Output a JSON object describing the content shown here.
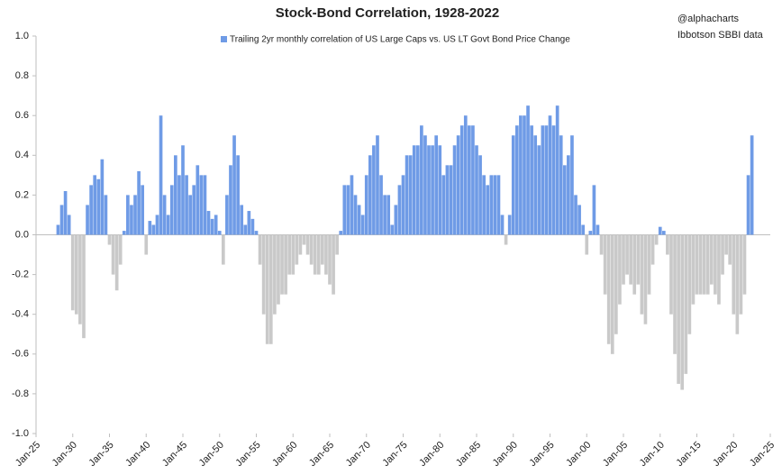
{
  "chart_data": {
    "type": "bar",
    "title": "Stock-Bond Correlation, 1928-2022",
    "annotations": [
      "@alphacharts",
      "Ibbotson SBBI data"
    ],
    "xlim": [
      1925,
      2025
    ],
    "xticks": [
      {
        "value": 1925,
        "label": "Jan-25"
      },
      {
        "value": 1930,
        "label": "Jan-30"
      },
      {
        "value": 1935,
        "label": "Jan-35"
      },
      {
        "value": 1940,
        "label": "Jan-40"
      },
      {
        "value": 1945,
        "label": "Jan-45"
      },
      {
        "value": 1950,
        "label": "Jan-50"
      },
      {
        "value": 1955,
        "label": "Jan-55"
      },
      {
        "value": 1960,
        "label": "Jan-60"
      },
      {
        "value": 1965,
        "label": "Jan-65"
      },
      {
        "value": 1970,
        "label": "Jan-70"
      },
      {
        "value": 1975,
        "label": "Jan-75"
      },
      {
        "value": 1980,
        "label": "Jan-80"
      },
      {
        "value": 1985,
        "label": "Jan-85"
      },
      {
        "value": 1990,
        "label": "Jan-90"
      },
      {
        "value": 1995,
        "label": "Jan-95"
      },
      {
        "value": 2000,
        "label": "Jan-00"
      },
      {
        "value": 2005,
        "label": "Jan-05"
      },
      {
        "value": 2010,
        "label": "Jan-10"
      },
      {
        "value": 2015,
        "label": "Jan-15"
      },
      {
        "value": 2020,
        "label": "Jan-20"
      },
      {
        "value": 2025,
        "label": "Jan-25"
      }
    ],
    "ylim": [
      -1,
      1
    ],
    "yticks": [
      {
        "value": 1,
        "label": "1.0"
      },
      0.8,
      0.6,
      0.4,
      0.2,
      {
        "value": 0,
        "label": "0.0"
      },
      -0.2,
      -0.4,
      -0.6,
      -0.8,
      {
        "value": -1,
        "label": "-1.0"
      }
    ],
    "x": [
      1928,
      1928.5,
      1929,
      1929.5,
      1930,
      1930.5,
      1931,
      1931.5,
      1932,
      1932.5,
      1933,
      1933.5,
      1934,
      1934.5,
      1935,
      1935.5,
      1936,
      1936.5,
      1937,
      1937.5,
      1938,
      1938.5,
      1939,
      1939.5,
      1940,
      1940.5,
      1941,
      1941.5,
      1942,
      1942.5,
      1943,
      1943.5,
      1944,
      1944.5,
      1945,
      1945.5,
      1946,
      1946.5,
      1947,
      1947.5,
      1948,
      1948.5,
      1949,
      1949.5,
      1950,
      1950.5,
      1951,
      1951.5,
      1952,
      1952.5,
      1953,
      1953.5,
      1954,
      1954.5,
      1955,
      1955.5,
      1956,
      1956.5,
      1957,
      1957.5,
      1958,
      1958.5,
      1959,
      1959.5,
      1960,
      1960.5,
      1961,
      1961.5,
      1962,
      1962.5,
      1963,
      1963.5,
      1964,
      1964.5,
      1965,
      1965.5,
      1966,
      1966.5,
      1967,
      1967.5,
      1968,
      1968.5,
      1969,
      1969.5,
      1970,
      1970.5,
      1971,
      1971.5,
      1972,
      1972.5,
      1973,
      1973.5,
      1974,
      1974.5,
      1975,
      1975.5,
      1976,
      1976.5,
      1977,
      1977.5,
      1978,
      1978.5,
      1979,
      1979.5,
      1980,
      1980.5,
      1981,
      1981.5,
      1982,
      1982.5,
      1983,
      1983.5,
      1984,
      1984.5,
      1985,
      1985.5,
      1986,
      1986.5,
      1987,
      1987.5,
      1988,
      1988.5,
      1989,
      1989.5,
      1990,
      1990.5,
      1991,
      1991.5,
      1992,
      1992.5,
      1993,
      1993.5,
      1994,
      1994.5,
      1995,
      1995.5,
      1996,
      1996.5,
      1997,
      1997.5,
      1998,
      1998.5,
      1999,
      1999.5,
      2000,
      2000.5,
      2001,
      2001.5,
      2002,
      2002.5,
      2003,
      2003.5,
      2004,
      2004.5,
      2005,
      2005.5,
      2006,
      2006.5,
      2007,
      2007.5,
      2008,
      2008.5,
      2009,
      2009.5,
      2010,
      2010.5,
      2011,
      2011.5,
      2012,
      2012.5,
      2013,
      2013.5,
      2014,
      2014.5,
      2015,
      2015.5,
      2016,
      2016.5,
      2017,
      2017.5,
      2018,
      2018.5,
      2019,
      2019.5,
      2020,
      2020.5,
      2021,
      2021.5,
      2022,
      2022.5
    ],
    "series": [
      {
        "name": "Trailing 2yr monthly correlation of US Large Caps vs. US LT Govt Bond Price Change",
        "color": "#6f9be6",
        "negative_color": "#c9c9c9",
        "values": [
          0.05,
          0.15,
          0.22,
          0.1,
          -0.38,
          -0.4,
          -0.45,
          -0.52,
          0.15,
          0.25,
          0.3,
          0.28,
          0.38,
          0.2,
          -0.05,
          -0.2,
          -0.28,
          -0.15,
          0.02,
          0.2,
          0.15,
          0.2,
          0.32,
          0.25,
          -0.1,
          0.07,
          0.05,
          0.1,
          0.6,
          0.2,
          0.1,
          0.25,
          0.4,
          0.3,
          0.45,
          0.3,
          0.2,
          0.25,
          0.35,
          0.3,
          0.3,
          0.12,
          0.08,
          0.1,
          0.02,
          -0.15,
          0.2,
          0.35,
          0.5,
          0.4,
          0.15,
          0.05,
          0.12,
          0.08,
          0.02,
          -0.15,
          -0.4,
          -0.55,
          -0.55,
          -0.4,
          -0.35,
          -0.3,
          -0.3,
          -0.2,
          -0.2,
          -0.15,
          -0.1,
          -0.05,
          -0.1,
          -0.15,
          -0.2,
          -0.2,
          -0.15,
          -0.2,
          -0.25,
          -0.3,
          -0.1,
          0.02,
          0.25,
          0.25,
          0.3,
          0.2,
          0.15,
          0.1,
          0.3,
          0.4,
          0.45,
          0.5,
          0.3,
          0.2,
          0.2,
          0.05,
          0.15,
          0.25,
          0.3,
          0.4,
          0.4,
          0.45,
          0.45,
          0.55,
          0.5,
          0.45,
          0.45,
          0.5,
          0.45,
          0.3,
          0.35,
          0.35,
          0.45,
          0.5,
          0.55,
          0.6,
          0.55,
          0.55,
          0.45,
          0.4,
          0.3,
          0.25,
          0.3,
          0.3,
          0.3,
          0.1,
          -0.05,
          0.1,
          0.5,
          0.55,
          0.6,
          0.6,
          0.65,
          0.55,
          0.5,
          0.45,
          0.55,
          0.55,
          0.6,
          0.55,
          0.65,
          0.5,
          0.35,
          0.4,
          0.5,
          0.2,
          0.15,
          0.05,
          -0.1,
          0.02,
          0.25,
          0.05,
          -0.1,
          -0.3,
          -0.55,
          -0.6,
          -0.5,
          -0.35,
          -0.25,
          -0.2,
          -0.25,
          -0.3,
          -0.25,
          -0.4,
          -0.45,
          -0.3,
          -0.15,
          -0.05,
          0.04,
          0.02,
          -0.1,
          -0.4,
          -0.6,
          -0.75,
          -0.78,
          -0.7,
          -0.5,
          -0.35,
          -0.3,
          -0.3,
          -0.3,
          -0.3,
          -0.25,
          -0.3,
          -0.35,
          -0.2,
          -0.1,
          -0.15,
          -0.4,
          -0.5,
          -0.4,
          -0.3,
          0.3,
          0.5
        ]
      }
    ]
  }
}
